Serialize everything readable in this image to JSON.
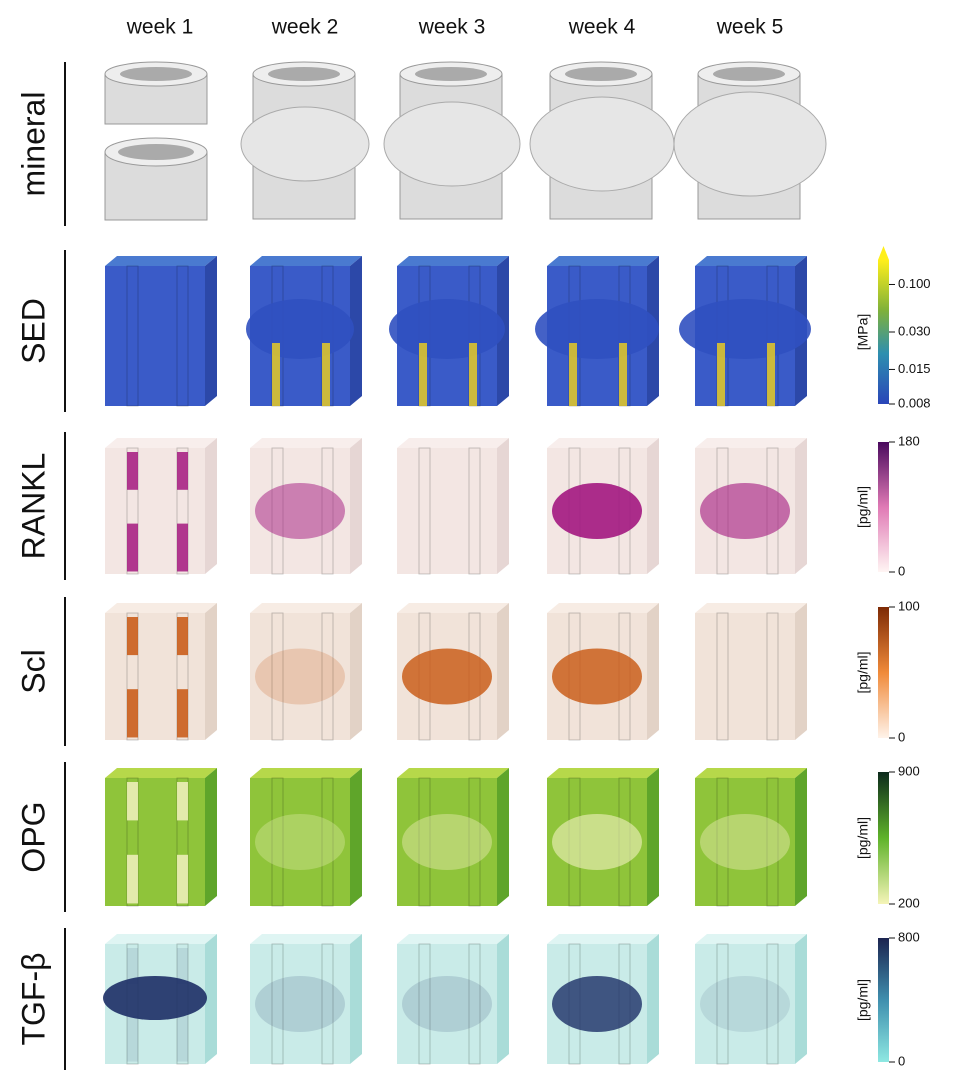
{
  "columns": [
    "week 1",
    "week 2",
    "week 3",
    "week 4",
    "week 5"
  ],
  "rows": [
    {
      "label": "mineral"
    },
    {
      "label": "SED",
      "colorbar": {
        "unit": "[MPa]",
        "ticks": [
          "0.100",
          "0.030",
          "0.015",
          "0.008"
        ]
      }
    },
    {
      "label": "RANKL",
      "colorbar": {
        "unit": "[pg/ml]",
        "ticks": [
          "180",
          "0"
        ]
      }
    },
    {
      "label": "Scl",
      "colorbar": {
        "unit": "[pg/ml]",
        "ticks": [
          "100",
          "0"
        ]
      }
    },
    {
      "label": "OPG",
      "colorbar": {
        "unit": "[pg/ml]",
        "ticks": [
          "900",
          "200"
        ]
      }
    },
    {
      "label": "TGF-β",
      "colorbar": {
        "unit": "[pg/ml]",
        "ticks": [
          "800",
          "0"
        ]
      }
    }
  ]
}
